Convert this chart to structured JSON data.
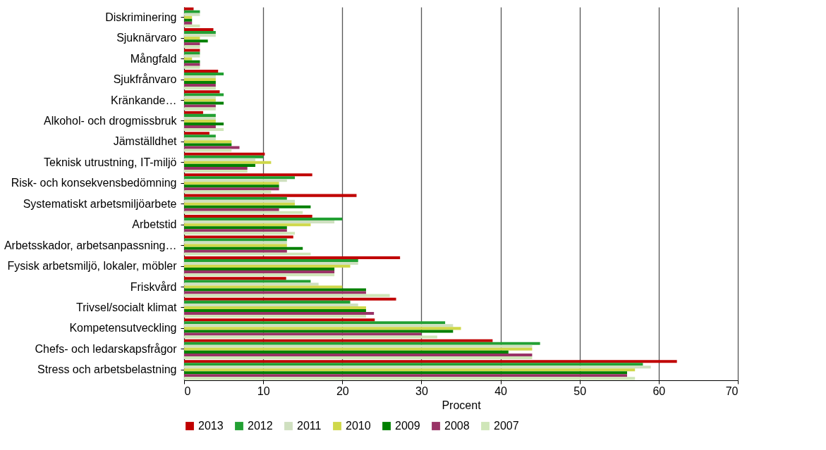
{
  "chart_data": {
    "type": "bar",
    "orientation": "horizontal",
    "xlabel": "Procent",
    "categories": [
      "Diskriminering",
      "Sjuknärvaro",
      "Mångfald",
      "Sjukfrånvaro",
      "Kränkande…",
      "Alkohol- och drogmissbruk",
      "Jämställdhet",
      "Teknisk utrustning, IT-miljö",
      "Risk- och konsekvensbedömning",
      "Systematiskt arbetsmiljöarbete",
      "Arbetstid",
      "Arbetsskador, arbetsanpassning…",
      "Fysisk arbetsmiljö, lokaler, möbler",
      "Friskvård",
      "Trivsel/socialt klimat",
      "Kompetensutveckling",
      "Chefs- och ledarskapsfrågor",
      "Stress och arbetsbelastning"
    ],
    "series": [
      {
        "name": "2013",
        "color": "#c00000",
        "values": [
          1.2,
          3.7,
          2,
          4.3,
          4.5,
          2.4,
          3.2,
          10.2,
          16.2,
          21.8,
          16.2,
          13.8,
          27.3,
          12.9,
          26.8,
          24.1,
          39,
          62.3
        ]
      },
      {
        "name": "2012",
        "color": "#22a033",
        "values": [
          2,
          4,
          2,
          5,
          5,
          4,
          4,
          10,
          14,
          13,
          20,
          13,
          22,
          16,
          21,
          33,
          45,
          58
        ]
      },
      {
        "name": "2011",
        "color": "#cfe0c0",
        "values": [
          2,
          4,
          2,
          4,
          4,
          4,
          4,
          9,
          13,
          14,
          19,
          13,
          22,
          17,
          22,
          34,
          44,
          59
        ]
      },
      {
        "name": "2010",
        "color": "#cfd84a",
        "values": [
          1,
          2,
          1,
          4,
          4,
          4,
          6,
          11,
          12,
          14,
          16,
          13,
          21,
          20,
          23,
          35,
          44,
          57
        ]
      },
      {
        "name": "2009",
        "color": "#008000",
        "values": [
          1,
          3,
          2,
          4,
          5,
          5,
          6,
          9,
          12,
          16,
          13,
          15,
          19,
          23,
          23,
          34,
          41,
          56
        ]
      },
      {
        "name": "2008",
        "color": "#993366",
        "values": [
          1,
          2,
          2,
          4,
          4,
          4,
          7,
          8,
          12,
          12,
          13,
          13,
          19,
          23,
          24,
          30,
          44,
          56
        ]
      },
      {
        "name": "2007",
        "color": "#cfe6b8",
        "values": [
          2,
          2,
          2,
          4,
          4,
          5,
          6,
          8,
          11,
          15,
          14,
          16,
          19,
          26,
          23,
          32,
          44,
          57
        ]
      }
    ],
    "xlim": [
      0,
      70
    ],
    "xticks": [
      0,
      10,
      20,
      30,
      40,
      50,
      60,
      70
    ],
    "grid": "x",
    "legend": "bottom"
  }
}
